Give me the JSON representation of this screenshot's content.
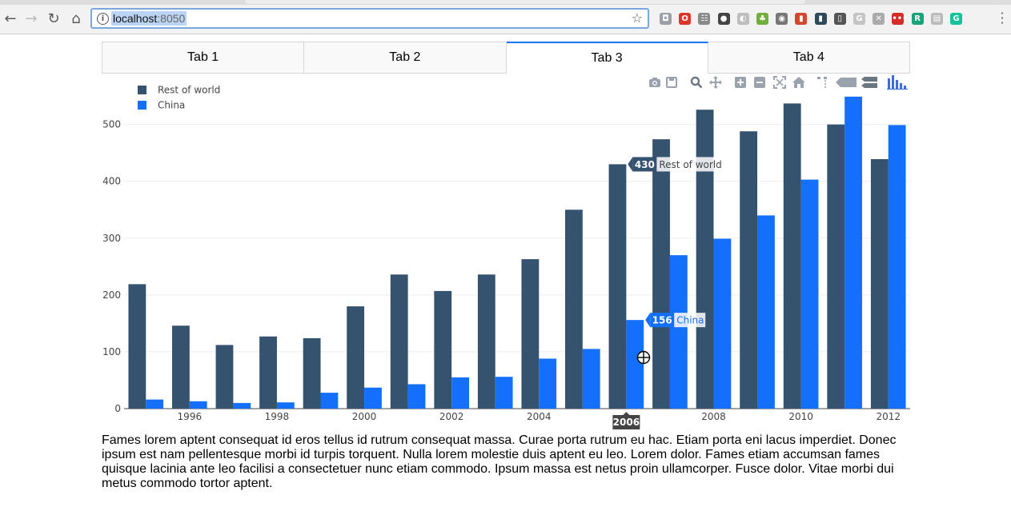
{
  "browser": {
    "url_host": "localhost",
    "url_port": ":8050",
    "extensions": [
      {
        "name": "pocket-icon",
        "color": "#9aa0a6",
        "glyph": "◘"
      },
      {
        "name": "opera-icon",
        "color": "#e0332a",
        "glyph": "O"
      },
      {
        "name": "feedback-icon",
        "color": "#8a8a8a",
        "glyph": "☷"
      },
      {
        "name": "ghostery-icon",
        "color": "#444444",
        "glyph": "●"
      },
      {
        "name": "disconnect-icon",
        "color": "#bdbdbd",
        "glyph": "◐"
      },
      {
        "name": "evernote-icon",
        "color": "#6fae3f",
        "glyph": "♣"
      },
      {
        "name": "camera-icon",
        "color": "#777777",
        "glyph": "◉"
      },
      {
        "name": "bookmark-icon",
        "color": "#d6452f",
        "glyph": "▮"
      },
      {
        "name": "screencast-icon",
        "color": "#2e4a5a",
        "glyph": "▮"
      },
      {
        "name": "mobile-icon",
        "color": "#555555",
        "glyph": "▯"
      },
      {
        "name": "g-ext-icon",
        "color": "#c4c4c4",
        "glyph": "G"
      },
      {
        "name": "plugin-icon",
        "color": "#aaaaaa",
        "glyph": "✕"
      },
      {
        "name": "lastpass-icon",
        "color": "#d32d27",
        "glyph": "•••"
      },
      {
        "name": "r-ext-icon",
        "color": "#1aa37a",
        "glyph": "R"
      },
      {
        "name": "page-icon",
        "color": "#bbbbbb",
        "glyph": "▤"
      },
      {
        "name": "grammarly-icon",
        "color": "#15c39a",
        "glyph": "G"
      }
    ]
  },
  "tabs": [
    {
      "label": "Tab 1",
      "selected": false
    },
    {
      "label": "Tab 2",
      "selected": false
    },
    {
      "label": "Tab 3",
      "selected": true
    },
    {
      "label": "Tab 4",
      "selected": false
    }
  ],
  "modebar_icons": [
    "camera-icon",
    "save-icon",
    "zoom-icon",
    "pan-icon",
    "zoom-in-icon",
    "zoom-out-icon",
    "autoscale-icon",
    "home-icon",
    "spike-lines-icon",
    "hover-closest-icon",
    "hover-compare-icon",
    "plotly-logo-icon"
  ],
  "chart_data": {
    "type": "bar",
    "x": [
      1995,
      1996,
      1997,
      1998,
      1999,
      2000,
      2001,
      2002,
      2003,
      2004,
      2005,
      2006,
      2007,
      2008,
      2009,
      2010,
      2011,
      2012
    ],
    "series": [
      {
        "name": "Rest of world",
        "color": "#35526e",
        "values": [
          219,
          146,
          112,
          127,
          124,
          180,
          236,
          207,
          236,
          263,
          350,
          430,
          474,
          526,
          488,
          537,
          500,
          439
        ]
      },
      {
        "name": "China",
        "color": "#1470fa",
        "values": [
          16,
          13,
          10,
          11,
          28,
          37,
          43,
          55,
          56,
          88,
          105,
          156,
          270,
          299,
          340,
          403,
          549,
          499
        ]
      }
    ],
    "x_ticks": [
      "1996",
      "1998",
      "2000",
      "2002",
      "2004",
      "2006",
      "2008",
      "2010",
      "2012"
    ],
    "y_ticks": [
      0,
      100,
      200,
      300,
      400,
      500
    ],
    "ylim": [
      0,
      553
    ],
    "legend_position": "top-left",
    "hover": {
      "x_label": "2006",
      "labels": [
        {
          "series": "Rest of world",
          "value": "430"
        },
        {
          "series": "China",
          "value": "156"
        }
      ]
    }
  },
  "paragraph": "Fames lorem aptent consequat id eros tellus id rutrum consequat massa. Curae porta rutrum eu hac. Etiam porta eni lacus imperdiet. Donec ipsum est nam pellentesque morbi id turpis torquent. Nulla lorem molestie duis aptent eu leo. Lorem dolor. Fames etiam accumsan fames quisque lacinia ante leo facilisi a consectetuer nunc etiam commodo. Ipsum massa est netus proin ullamcorper. Fusce dolor. Vitae morbi dui metus commodo tortor aptent."
}
